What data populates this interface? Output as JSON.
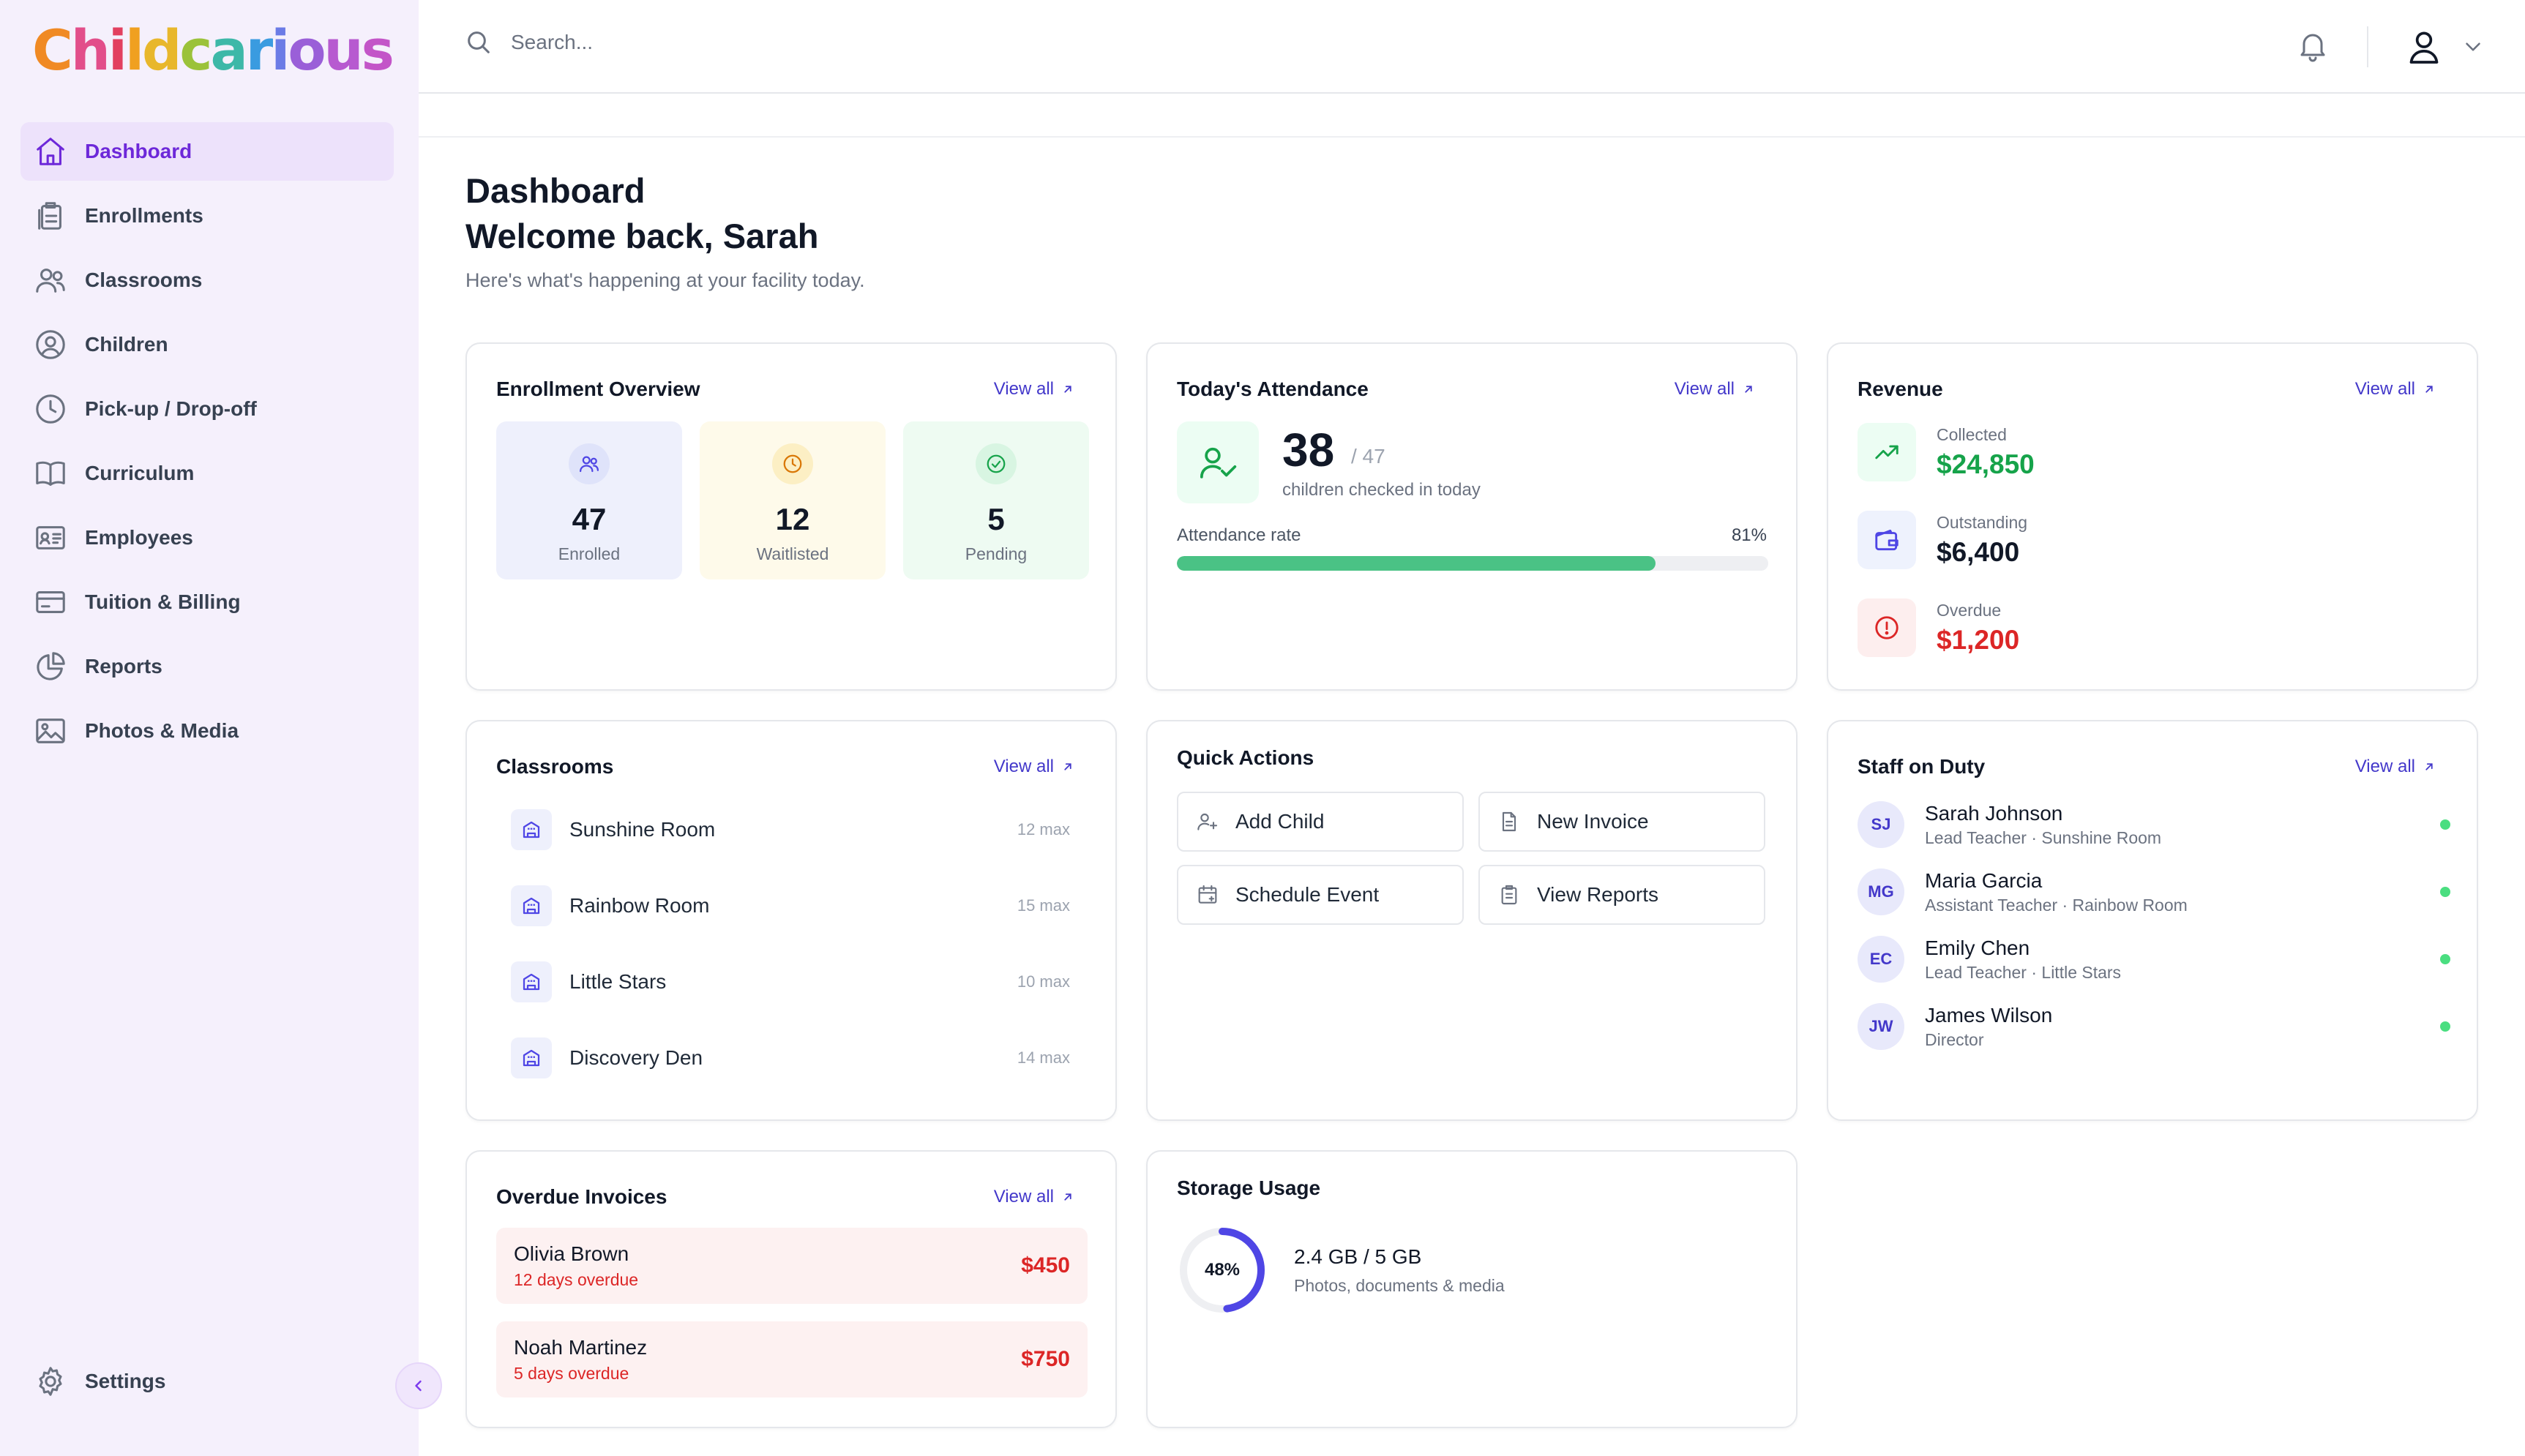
{
  "brand": {
    "name": "Childcarious",
    "letters": [
      {
        "ch": "C",
        "color": "#f08a24"
      },
      {
        "ch": "h",
        "color": "#e24e8a"
      },
      {
        "ch": "i",
        "color": "#e2405f"
      },
      {
        "ch": "l",
        "color": "#f0a020"
      },
      {
        "ch": "d",
        "color": "#e8b72c"
      },
      {
        "ch": "c",
        "color": "#9bc23a"
      },
      {
        "ch": "a",
        "color": "#3db8a8"
      },
      {
        "ch": "r",
        "color": "#3a9be0"
      },
      {
        "ch": "i",
        "color": "#6b7be6"
      },
      {
        "ch": "o",
        "color": "#9a5fd8"
      },
      {
        "ch": "u",
        "color": "#b75ad0"
      },
      {
        "ch": "s",
        "color": "#c355c8"
      }
    ]
  },
  "sidebar": {
    "items": [
      {
        "label": "Dashboard",
        "icon": "home-icon",
        "active": true
      },
      {
        "label": "Enrollments",
        "icon": "clipboard-icon"
      },
      {
        "label": "Classrooms",
        "icon": "users-icon"
      },
      {
        "label": "Children",
        "icon": "user-circle-icon"
      },
      {
        "label": "Pick-up / Drop-off",
        "icon": "clock-icon"
      },
      {
        "label": "Curriculum",
        "icon": "book-icon"
      },
      {
        "label": "Employees",
        "icon": "id-card-icon"
      },
      {
        "label": "Tuition & Billing",
        "icon": "credit-card-icon"
      },
      {
        "label": "Reports",
        "icon": "pie-chart-icon"
      },
      {
        "label": "Photos & Media",
        "icon": "image-icon"
      }
    ],
    "settings_label": "Settings"
  },
  "header": {
    "search_placeholder": "Search..."
  },
  "page": {
    "title": "Dashboard",
    "welcome": "Welcome back, Sarah",
    "subtitle": "Here's what's happening at your facility today."
  },
  "common": {
    "view_all": "View all"
  },
  "enrollment": {
    "title": "Enrollment Overview",
    "stats": [
      {
        "value": "47",
        "label": "Enrolled"
      },
      {
        "value": "12",
        "label": "Waitlisted"
      },
      {
        "value": "5",
        "label": "Pending"
      }
    ]
  },
  "attendance": {
    "title": "Today's Attendance",
    "present": "38",
    "total": "/ 47",
    "subtitle": "children checked in today",
    "rate_label": "Attendance rate",
    "rate_text": "81%",
    "rate": 0.81
  },
  "revenue": {
    "title": "Revenue",
    "items": [
      {
        "label": "Collected",
        "value": "$24,850",
        "color": "#16a34a"
      },
      {
        "label": "Outstanding",
        "value": "$6,400",
        "color": "#111827"
      },
      {
        "label": "Overdue",
        "value": "$1,200",
        "color": "#dc2626"
      }
    ]
  },
  "classrooms": {
    "title": "Classrooms",
    "items": [
      {
        "name": "Sunshine Room",
        "max": "12 max"
      },
      {
        "name": "Rainbow Room",
        "max": "15 max"
      },
      {
        "name": "Little Stars",
        "max": "10 max"
      },
      {
        "name": "Discovery Den",
        "max": "14 max"
      }
    ]
  },
  "quick_actions": {
    "title": "Quick Actions",
    "items": [
      {
        "label": "Add Child",
        "icon": "user-plus-icon"
      },
      {
        "label": "New Invoice",
        "icon": "document-icon"
      },
      {
        "label": "Schedule Event",
        "icon": "calendar-icon"
      },
      {
        "label": "View Reports",
        "icon": "clipboard-icon"
      }
    ]
  },
  "staff": {
    "title": "Staff on Duty",
    "items": [
      {
        "initials": "SJ",
        "name": "Sarah Johnson",
        "role": "Lead Teacher · Sunshine Room"
      },
      {
        "initials": "MG",
        "name": "Maria Garcia",
        "role": "Assistant Teacher · Rainbow Room"
      },
      {
        "initials": "EC",
        "name": "Emily Chen",
        "role": "Lead Teacher · Little Stars"
      },
      {
        "initials": "JW",
        "name": "James Wilson",
        "role": "Director"
      }
    ]
  },
  "overdue": {
    "title": "Overdue Invoices",
    "items": [
      {
        "name": "Olivia Brown",
        "due": "12 days overdue",
        "amount": "$450"
      },
      {
        "name": "Noah Martinez",
        "due": "5 days overdue",
        "amount": "$750"
      }
    ]
  },
  "storage": {
    "title": "Storage Usage",
    "percent_text": "48%",
    "percent": 0.48,
    "usage": "2.4 GB / 5 GB",
    "description": "Photos, documents & media"
  }
}
